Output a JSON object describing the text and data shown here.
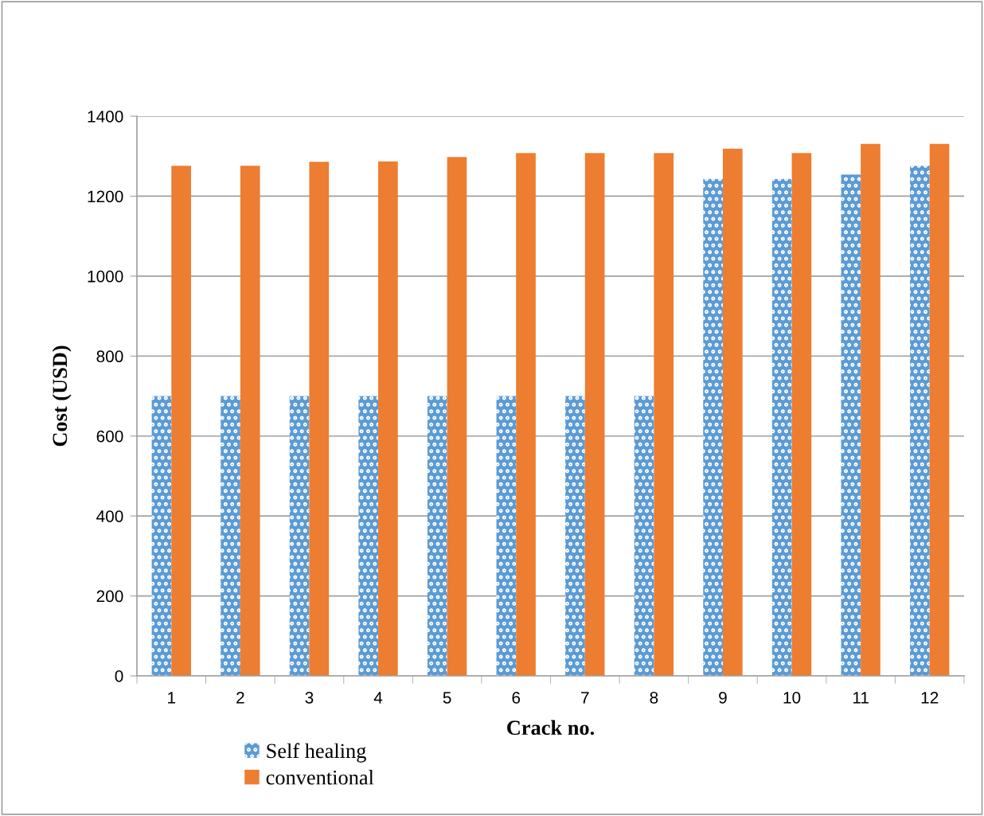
{
  "chart_data": {
    "type": "bar",
    "categories": [
      "1",
      "2",
      "3",
      "4",
      "5",
      "6",
      "7",
      "8",
      "9",
      "10",
      "11",
      "12"
    ],
    "series": [
      {
        "name": "Self healing",
        "color": "#5b9bd5",
        "values": [
          700,
          700,
          700,
          700,
          700,
          700,
          700,
          700,
          1243,
          1243,
          1254,
          1276
        ]
      },
      {
        "name": "conventional",
        "color": "#ed7d31",
        "values": [
          1276,
          1276,
          1286,
          1287,
          1298,
          1308,
          1308,
          1308,
          1319,
          1308,
          1331,
          1331
        ]
      }
    ],
    "xlabel": "Crack no.",
    "ylabel": "Cost (USD)",
    "ylim": [
      0,
      1400
    ],
    "yticks": [
      0,
      200,
      400,
      600,
      800,
      1000,
      1200,
      1400
    ],
    "grid": "y",
    "legend": "bottom"
  }
}
